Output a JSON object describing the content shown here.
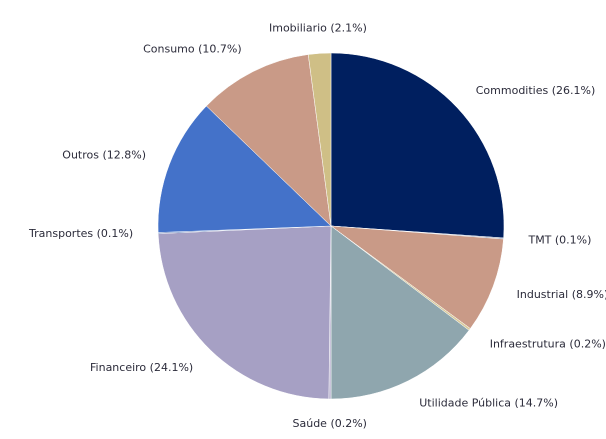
{
  "chart_data": {
    "type": "pie",
    "categories": [
      "Commodities (26.1%)",
      "TMT (0.1%)",
      "Industrial (8.9%)",
      "Infraestrutura (0.2%)",
      "Utilidade Pública (14.7%)",
      "Saúde (0.2%)",
      "Financeiro (24.1%)",
      "Transportes (0.1%)",
      "Outros (12.8%)",
      "Consumo (10.7%)",
      "Imobiliario (2.1%)"
    ],
    "values": [
      26.1,
      0.1,
      8.9,
      0.2,
      14.7,
      0.2,
      24.1,
      0.1,
      12.8,
      10.7,
      2.1
    ],
    "colors": [
      "#001f5f",
      "#7f8fb0",
      "#c99a87",
      "#d9c99a",
      "#8fa6ae",
      "#b9b2cf",
      "#a6a0c4",
      "#3a5fa8",
      "#4472c9",
      "#c99a87",
      "#cfbf86"
    ]
  }
}
